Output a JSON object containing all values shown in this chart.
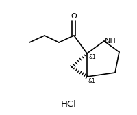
{
  "background_color": "#ffffff",
  "hcl_label": "HCl",
  "nh_label": "NH",
  "o_label": "O",
  "stereo1": "&1",
  "stereo2": "&1",
  "figsize": [
    2.01,
    1.68
  ],
  "dpi": 100,
  "lw": 1.2
}
